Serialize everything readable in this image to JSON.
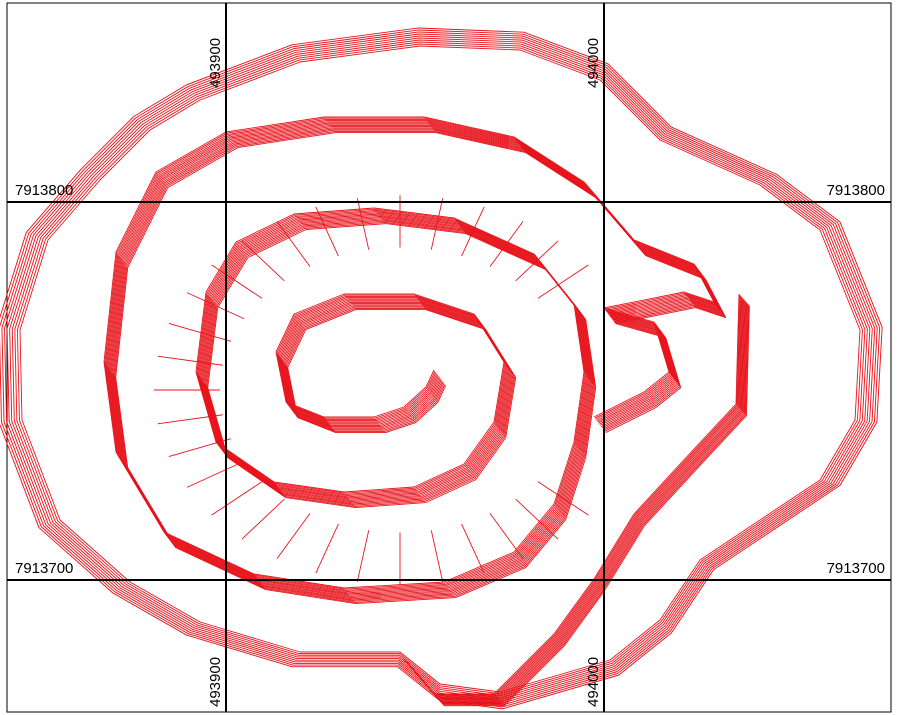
{
  "grid": {
    "x_labels": [
      "493900",
      "494000"
    ],
    "y_labels": [
      "7913800",
      "7913700"
    ]
  }
}
